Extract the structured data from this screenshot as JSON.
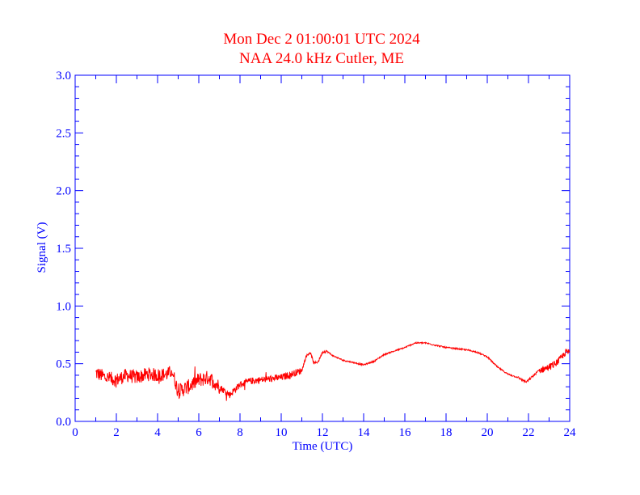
{
  "chart_data": {
    "type": "line",
    "title": "Mon Dec 2 01:00:01 UTC 2024",
    "subtitle": "NAA 24.0 kHz Cutler, ME",
    "xlabel": "Time (UTC)",
    "ylabel": "Signal (V)",
    "xlim": [
      0,
      24
    ],
    "ylim": [
      0.0,
      3.0
    ],
    "x_ticks": [
      "0",
      "2",
      "4",
      "6",
      "8",
      "10",
      "12",
      "14",
      "16",
      "18",
      "20",
      "22",
      "24"
    ],
    "y_ticks": [
      "0.0",
      "0.5",
      "1.0",
      "1.5",
      "2.0",
      "2.5",
      "3.0"
    ],
    "grid": false,
    "colors": {
      "axes": "#0000ff",
      "title": "#ff0000",
      "series": "#ff0000"
    },
    "series": [
      {
        "x": [
          1.0,
          1.5,
          2.0,
          2.5,
          3.0,
          3.5,
          4.0,
          4.5,
          4.7,
          5.0,
          5.5,
          6.0,
          6.5,
          7.0,
          7.5,
          8.0,
          8.5,
          9.0,
          9.5,
          10.0,
          10.5,
          11.0,
          11.2,
          11.4,
          11.6,
          11.8,
          12.0,
          12.2,
          12.5,
          13.0,
          13.5,
          14.0,
          14.5,
          15.0,
          15.5,
          16.0,
          16.5,
          17.0,
          17.5,
          18.0,
          18.5,
          19.0,
          19.5,
          20.0,
          20.5,
          21.0,
          21.5,
          21.9,
          22.2,
          22.5,
          23.0,
          23.3,
          23.6,
          23.8,
          24.0
        ],
        "y": [
          0.42,
          0.38,
          0.36,
          0.4,
          0.38,
          0.41,
          0.4,
          0.41,
          0.44,
          0.26,
          0.3,
          0.36,
          0.38,
          0.3,
          0.23,
          0.32,
          0.35,
          0.36,
          0.37,
          0.38,
          0.41,
          0.44,
          0.56,
          0.6,
          0.5,
          0.52,
          0.6,
          0.61,
          0.57,
          0.53,
          0.51,
          0.49,
          0.52,
          0.58,
          0.61,
          0.64,
          0.68,
          0.68,
          0.66,
          0.64,
          0.63,
          0.62,
          0.6,
          0.56,
          0.47,
          0.41,
          0.38,
          0.34,
          0.39,
          0.44,
          0.47,
          0.5,
          0.55,
          0.6,
          0.6
        ]
      }
    ]
  }
}
